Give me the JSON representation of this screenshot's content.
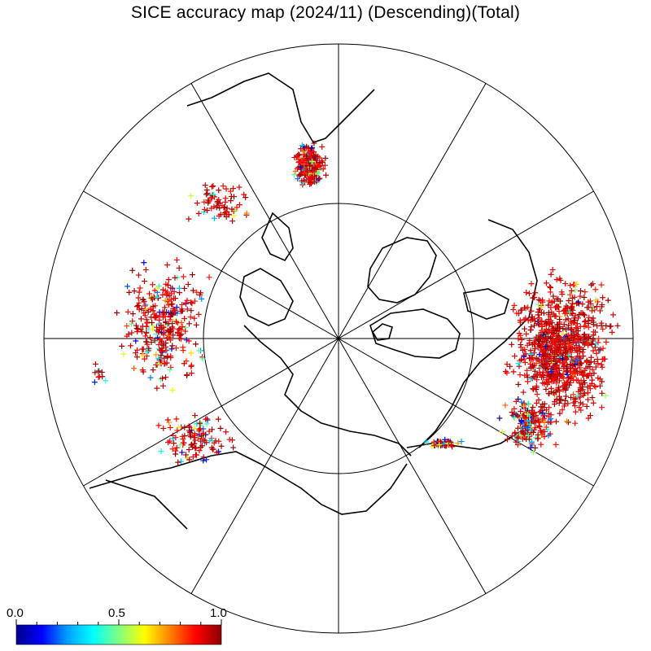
{
  "title": "SICE accuracy map (2024/11) (Descending)(Total)",
  "map": {
    "projection": "polar-stereographic-north",
    "grid": {
      "parallels_deg": [
        60
      ],
      "meridian_spacing_deg": 30
    },
    "coastline_color": "#000000",
    "marker_symbol": "+",
    "marker_colormap": "rainbow",
    "marker_value_range": [
      0.0,
      1.0
    ]
  },
  "colorbar": {
    "min_label": "0.0",
    "mid_label": "0.5",
    "max_label": "1.0",
    "min": 0.0,
    "max": 1.0,
    "colors": [
      "#00008c",
      "#0000ff",
      "#00a0ff",
      "#00ffff",
      "#80ff80",
      "#ffff00",
      "#ff8000",
      "#ff0000",
      "#8b0000"
    ]
  }
}
